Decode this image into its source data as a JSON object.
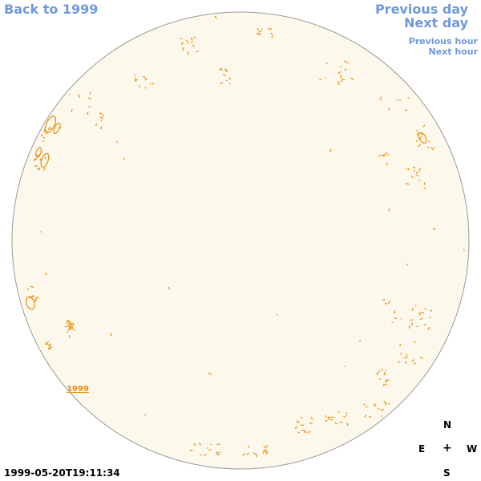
{
  "nav": {
    "back": "Back to 1999",
    "previous_day": "Previous day",
    "next_day": "Next day",
    "previous_hour": "Previous hour",
    "next_hour": "Next hour"
  },
  "timestamp": "1999-05-20T19:11:34",
  "year_tag": "1999",
  "compass": {
    "north": "N",
    "east": "E",
    "center": "+",
    "west": "W",
    "south": "S"
  },
  "colors": {
    "link": "#6f98de",
    "disk_fill": "#fdf8ec",
    "disk_stroke": "#9a9a9a",
    "contour": "#ea8d0b"
  },
  "icons": {
    "compass_center": "plus-icon"
  }
}
